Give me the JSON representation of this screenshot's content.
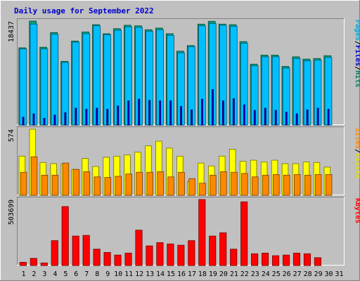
{
  "chart_data": {
    "type": "bar",
    "title": "Daily usage for September 2022",
    "categories": [
      "1",
      "2",
      "3",
      "4",
      "5",
      "6",
      "7",
      "8",
      "9",
      "10",
      "11",
      "12",
      "13",
      "14",
      "15",
      "16",
      "17",
      "18",
      "19",
      "20",
      "21",
      "22",
      "23",
      "24",
      "25",
      "26",
      "27",
      "28",
      "29",
      "30",
      "31"
    ],
    "weekend_days": [
      "3",
      "4",
      "10",
      "11",
      "17",
      "18",
      "24",
      "25",
      "31"
    ],
    "panels": [
      {
        "id": "top",
        "max_label": "18437",
        "ylim": [
          0,
          18437
        ],
        "side_label": [
          {
            "text": "Pages",
            "color": "#00aadd"
          },
          {
            "text": "/",
            "color": "#000000"
          },
          {
            "text": "Files",
            "color": "#0000cc"
          },
          {
            "text": "/",
            "color": "#000000"
          },
          {
            "text": "Hits",
            "color": "#008060"
          }
        ],
        "series": [
          {
            "name": "Hits",
            "color": "#00a080",
            "values": [
              13700,
              18437,
              13800,
              16400,
              11300,
              14900,
              16500,
              17800,
              16200,
              17100,
              17700,
              17600,
              16900,
              17200,
              16200,
              13100,
              14100,
              17900,
              18400,
              17900,
              17800,
              14800,
              10800,
              12400,
              12400,
              10400,
              12100,
              11700,
              11800,
              12300,
              0
            ]
          },
          {
            "name": "Pages",
            "color": "#00bfff",
            "values": [
              13500,
              17900,
              13500,
              16100,
              11100,
              14700,
              16200,
              17600,
              16000,
              16800,
              17400,
              17300,
              16600,
              16900,
              15900,
              12800,
              13900,
              17600,
              18000,
              17700,
              17500,
              14500,
              10500,
              12100,
              12100,
              10100,
              11800,
              11400,
              11500,
              12000,
              0
            ]
          },
          {
            "name": "Files",
            "color": "#0000cc",
            "values": [
              1400,
              2000,
              1200,
              1800,
              2200,
              3000,
              2800,
              3000,
              2800,
              3400,
              4300,
              4600,
              4400,
              4300,
              4300,
              3300,
              2700,
              4600,
              6300,
              4300,
              4700,
              3600,
              2600,
              3000,
              2600,
              2300,
              2000,
              2700,
              3000,
              2800,
              0
            ]
          }
        ]
      },
      {
        "id": "mid",
        "max_label": "574",
        "ylim": [
          0,
          574
        ],
        "side_label": [
          {
            "text": "Sites",
            "color": "#ff8800"
          },
          {
            "text": "/",
            "color": "#000000"
          },
          {
            "text": "Visits",
            "color": "#dddd00"
          }
        ],
        "series": [
          {
            "name": "Visits",
            "color": "#ffff00",
            "values": [
              340,
              574,
              285,
              275,
              270,
              225,
              320,
              250,
              330,
              340,
              350,
              375,
              430,
              470,
              410,
              340,
              120,
              280,
              255,
              340,
              400,
              295,
              305,
              290,
              305,
              275,
              275,
              290,
              285,
              245,
              0
            ]
          },
          {
            "name": "Sites",
            "color": "#ff8800",
            "values": [
              200,
              335,
              175,
              175,
              280,
              225,
              205,
              160,
              155,
              165,
              185,
              200,
              200,
              205,
              160,
              200,
              145,
              105,
              175,
              205,
              200,
              190,
              160,
              175,
              180,
              175,
              180,
              175,
              180,
              180,
              0
            ]
          }
        ]
      },
      {
        "id": "bottom",
        "max_label": "503699",
        "ylim": [
          0,
          503699
        ],
        "side_label": [
          {
            "text": "KBytes",
            "color": "#ff0000"
          }
        ],
        "series": [
          {
            "name": "KBytes",
            "color": "#ff0000",
            "values": [
              25000,
              55000,
              20000,
              190000,
              450000,
              225000,
              230000,
              125000,
              100000,
              80000,
              95000,
              270000,
              150000,
              175000,
              165000,
              155000,
              190000,
              503699,
              225000,
              250000,
              125000,
              486000,
              90000,
              95000,
              75000,
              80000,
              95000,
              90000,
              60000,
              0,
              0
            ]
          }
        ]
      }
    ]
  }
}
